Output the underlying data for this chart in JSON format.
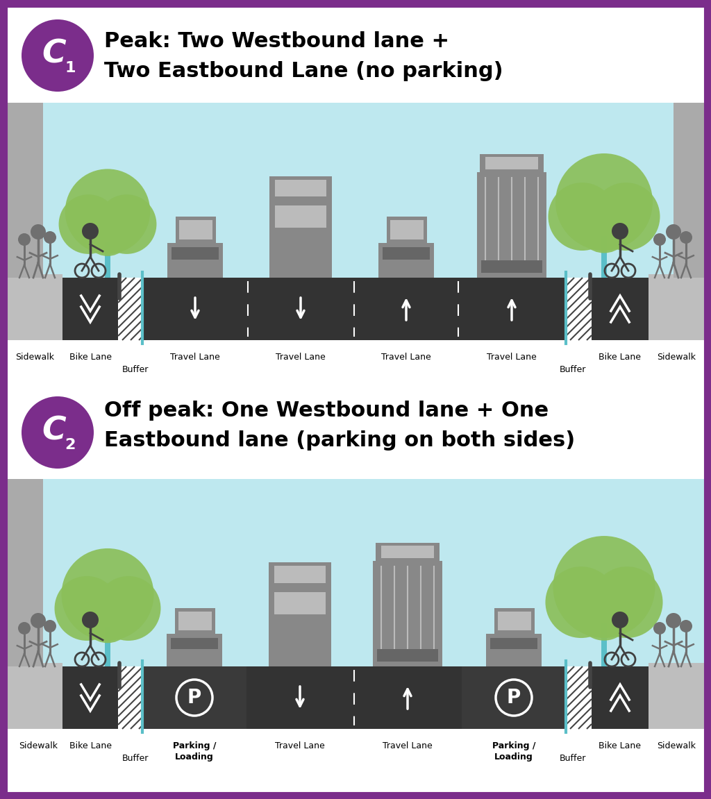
{
  "border_color": "#7B2D8B",
  "background_color": "#FFFFFF",
  "title1_line1": "Peak: Two Westbound lane +",
  "title1_line2": "Two Eastbound Lane (no parking)",
  "title2_line1": "Off peak: One Westbound lane + One",
  "title2_line2": "Eastbound lane (parking on both sides)",
  "purple": "#7B2D8B",
  "sky_blue": "#BEE8EF",
  "dark_road": "#333333",
  "sidewalk_gray": "#BEBEBE",
  "building_gray": "#AAAAAA",
  "vehicle_gray": "#888888",
  "vehicle_light": "#BBBBBB",
  "silhouette_gray": "#707070",
  "teal_trunk": "#5BBFC8",
  "foliage_color": "#8BBF5A",
  "bike_lane_color": "#5BBFC8",
  "hatch_color": "#555555",
  "white": "#FFFFFF",
  "black": "#000000"
}
